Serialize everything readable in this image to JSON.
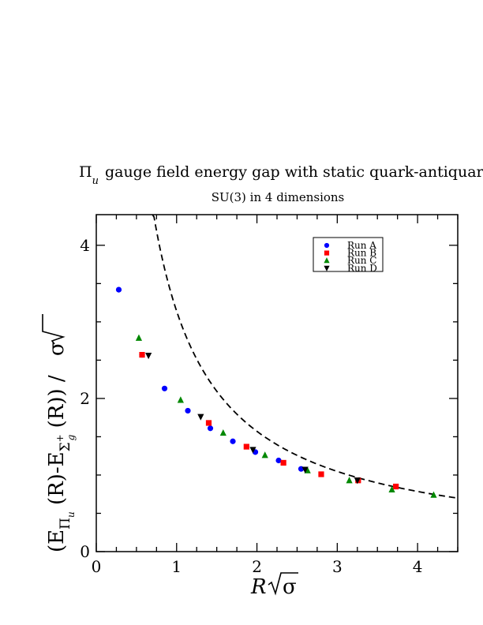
{
  "chart_data": {
    "type": "scatter",
    "title": "gauge field energy gap with static quark-antiquark pair",
    "title_symbol": "Π",
    "title_symbol_sub": "u",
    "subtitle": "SU(3) in 4 dimensions",
    "xlabel": "R",
    "xlabel_sqrt": "σ",
    "ylabel_parts": {
      "open": "(E",
      "sub1": "Π",
      "sub1_sub": "u",
      "mid1": " (R)-E",
      "sub2": "Σ",
      "sub2_sup": "+",
      "sub2_sub": "g",
      "mid2": " (R)) / ",
      "sqrt": "σ"
    },
    "xlim": [
      0,
      4.5
    ],
    "ylim": [
      0,
      4.4
    ],
    "x_ticks": [
      "0",
      "1",
      "2",
      "3",
      "4"
    ],
    "y_ticks": [
      "0",
      "2",
      "4"
    ],
    "legend_position": "top-right",
    "series": [
      {
        "name": "Run A",
        "marker": "circle",
        "color": "#0000ff",
        "x": [
          0.28,
          0.57,
          0.85,
          1.14,
          1.42,
          1.7,
          1.98,
          2.27,
          2.55
        ],
        "y": [
          3.42,
          2.57,
          2.13,
          1.84,
          1.61,
          1.44,
          1.3,
          1.19,
          1.08
        ]
      },
      {
        "name": "Run B",
        "marker": "square",
        "color": "#ff0000",
        "x": [
          0.57,
          1.4,
          1.87,
          2.33,
          2.8,
          3.26,
          3.73
        ],
        "y": [
          2.57,
          1.68,
          1.37,
          1.16,
          1.01,
          0.93,
          0.85
        ]
      },
      {
        "name": "Run C",
        "marker": "triangle-up",
        "color": "#008800",
        "x": [
          0.53,
          1.05,
          1.58,
          2.1,
          2.63,
          3.15,
          3.68,
          4.2
        ],
        "y": [
          2.79,
          1.98,
          1.55,
          1.26,
          1.06,
          0.93,
          0.81,
          0.74
        ]
      },
      {
        "name": "Run D",
        "marker": "triangle-down",
        "color": "#000000",
        "x": [
          0.65,
          1.3,
          1.95,
          2.6,
          3.25
        ],
        "y": [
          2.56,
          1.76,
          1.33,
          1.07,
          0.93
        ]
      }
    ],
    "reference_curve": {
      "style": "dashed",
      "color": "#000000",
      "formula": "pi / x",
      "x_range": [
        0.7,
        4.5
      ]
    }
  }
}
